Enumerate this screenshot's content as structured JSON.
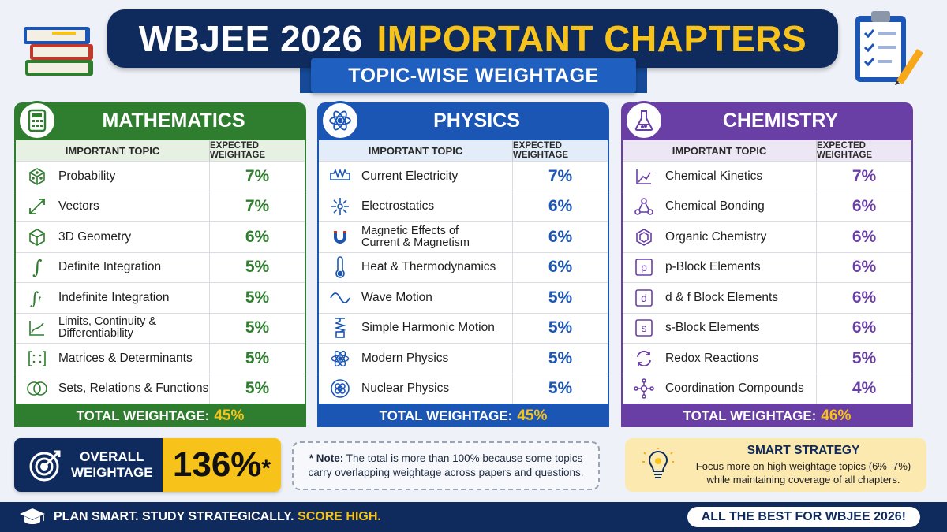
{
  "header": {
    "title_white": "WBJEE 2026",
    "title_yellow": "IMPORTANT CHAPTERS",
    "subtitle": "TOPIC-WISE WEIGHTAGE"
  },
  "table_headers": {
    "topic": "IMPORTANT TOPIC",
    "weight": "EXPECTED WEIGHTAGE"
  },
  "total_label": "TOTAL WEIGHTAGE:",
  "mathematics": {
    "name": "MATHEMATICS",
    "icon": "calculator-icon",
    "rows": [
      {
        "topic": "Probability",
        "weight": "7%",
        "icon": "dice-icon"
      },
      {
        "topic": "Vectors",
        "weight": "7%",
        "icon": "vector-arrow-icon"
      },
      {
        "topic": "3D Geometry",
        "weight": "6%",
        "icon": "cube-icon"
      },
      {
        "topic": "Definite Integration",
        "weight": "5%",
        "icon": "integral-icon"
      },
      {
        "topic": "Indefinite Integration",
        "weight": "5%",
        "icon": "indefinite-integral-icon"
      },
      {
        "topic_line1": "Limits, Continuity &",
        "topic_line2": "Differentiability",
        "weight": "5%",
        "icon": "graph-icon"
      },
      {
        "topic": "Matrices & Determinants",
        "weight": "5%",
        "icon": "matrix-icon"
      },
      {
        "topic": "Sets, Relations & Functions",
        "weight": "5%",
        "icon": "venn-icon"
      }
    ],
    "total": "45%"
  },
  "physics": {
    "name": "PHYSICS",
    "icon": "atom-icon",
    "rows": [
      {
        "topic": "Current Electricity",
        "weight": "7%",
        "icon": "resistor-icon"
      },
      {
        "topic": "Electrostatics",
        "weight": "6%",
        "icon": "spark-icon"
      },
      {
        "topic_line1": "Magnetic Effects of",
        "topic_line2": "Current & Magnetism",
        "weight": "6%",
        "icon": "magnet-icon"
      },
      {
        "topic": "Heat & Thermodynamics",
        "weight": "6%",
        "icon": "thermometer-icon"
      },
      {
        "topic": "Wave Motion",
        "weight": "5%",
        "icon": "wave-icon"
      },
      {
        "topic": "Simple Harmonic Motion",
        "weight": "5%",
        "icon": "spring-icon"
      },
      {
        "topic": "Modern Physics",
        "weight": "5%",
        "icon": "atom-icon"
      },
      {
        "topic": "Nuclear Physics",
        "weight": "5%",
        "icon": "nucleus-icon"
      }
    ],
    "total": "45%"
  },
  "chemistry": {
    "name": "CHEMISTRY",
    "icon": "flask-icon",
    "rows": [
      {
        "topic": "Chemical Kinetics",
        "weight": "7%",
        "icon": "kinetics-graph-icon"
      },
      {
        "topic": "Chemical Bonding",
        "weight": "6%",
        "icon": "molecule-icon"
      },
      {
        "topic": "Organic Chemistry",
        "weight": "6%",
        "icon": "hexagon-icon"
      },
      {
        "topic": "p-Block Elements",
        "weight": "6%",
        "icon": "p-block-icon",
        "letter": "p"
      },
      {
        "topic": "d & f Block Elements",
        "weight": "6%",
        "icon": "d-block-icon",
        "letter": "d"
      },
      {
        "topic": "s-Block Elements",
        "weight": "6%",
        "icon": "s-block-icon",
        "letter": "s"
      },
      {
        "topic": "Redox Reactions",
        "weight": "5%",
        "icon": "cycle-arrows-icon"
      },
      {
        "topic": "Coordination Compounds",
        "weight": "4%",
        "icon": "complex-icon"
      }
    ],
    "total": "46%"
  },
  "overall": {
    "label_line1": "OVERALL",
    "label_line2": "WEIGHTAGE",
    "value": "136%",
    "mark": "*"
  },
  "note": {
    "bold": "* Note:",
    "text": "The total is more than 100% because some topics carry overlapping weightage across papers and questions."
  },
  "strategy": {
    "title": "SMART STRATEGY",
    "text": "Focus more on high weightage topics (6%–7%) while maintaining coverage of all chapters."
  },
  "footer": {
    "slogan_white": "PLAN SMART. STUDY STRATEGICALLY.",
    "slogan_yellow": "SCORE HIGH.",
    "best": "ALL THE BEST FOR WBJEE 2026!"
  },
  "colors": {
    "navy": "#0f2a5c",
    "yellow": "#f7c21a",
    "math_green": "#2f7d2e",
    "physics_blue": "#1b56b5",
    "chemistry_purple": "#6a3fa5"
  }
}
